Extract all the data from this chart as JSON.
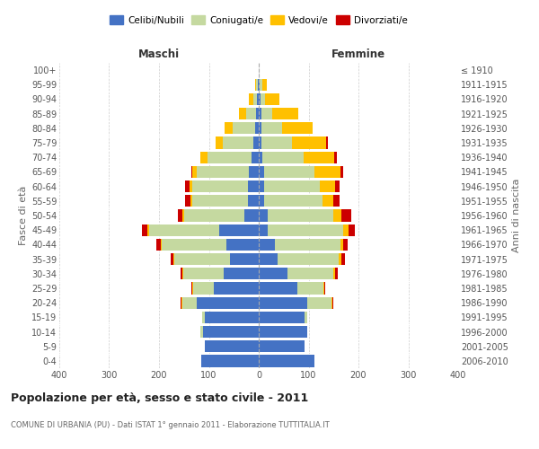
{
  "age_groups": [
    "0-4",
    "5-9",
    "10-14",
    "15-19",
    "20-24",
    "25-29",
    "30-34",
    "35-39",
    "40-44",
    "45-49",
    "50-54",
    "55-59",
    "60-64",
    "65-69",
    "70-74",
    "75-79",
    "80-84",
    "85-89",
    "90-94",
    "95-99",
    "100+"
  ],
  "birth_years": [
    "2006-2010",
    "2001-2005",
    "1996-2000",
    "1991-1995",
    "1986-1990",
    "1981-1985",
    "1976-1980",
    "1971-1975",
    "1966-1970",
    "1961-1965",
    "1956-1960",
    "1951-1955",
    "1946-1950",
    "1941-1945",
    "1936-1940",
    "1931-1935",
    "1926-1930",
    "1921-1925",
    "1916-1920",
    "1911-1915",
    "≤ 1910"
  ],
  "maschi": {
    "celibi": [
      115,
      108,
      112,
      108,
      125,
      90,
      70,
      58,
      65,
      80,
      28,
      22,
      22,
      20,
      15,
      10,
      8,
      5,
      3,
      2,
      0
    ],
    "coniugati": [
      0,
      0,
      5,
      5,
      28,
      42,
      82,
      112,
      130,
      140,
      122,
      112,
      112,
      105,
      88,
      62,
      45,
      20,
      8,
      3,
      0
    ],
    "vedovi": [
      0,
      0,
      0,
      0,
      2,
      2,
      2,
      2,
      2,
      3,
      3,
      3,
      5,
      8,
      14,
      14,
      15,
      15,
      8,
      2,
      0
    ],
    "divorziati": [
      0,
      0,
      0,
      0,
      2,
      2,
      3,
      5,
      8,
      12,
      10,
      10,
      8,
      3,
      0,
      0,
      0,
      0,
      0,
      0,
      0
    ]
  },
  "femmine": {
    "nubili": [
      112,
      92,
      98,
      92,
      98,
      78,
      58,
      38,
      32,
      18,
      18,
      10,
      10,
      10,
      8,
      5,
      5,
      5,
      3,
      2,
      0
    ],
    "coniugate": [
      0,
      0,
      0,
      5,
      48,
      52,
      92,
      122,
      132,
      152,
      132,
      118,
      112,
      102,
      82,
      62,
      42,
      22,
      10,
      5,
      0
    ],
    "vedove": [
      0,
      0,
      0,
      0,
      2,
      2,
      3,
      5,
      5,
      10,
      15,
      22,
      32,
      52,
      62,
      68,
      62,
      52,
      28,
      10,
      0
    ],
    "divorziate": [
      0,
      0,
      0,
      0,
      2,
      2,
      5,
      8,
      10,
      12,
      20,
      12,
      8,
      5,
      5,
      3,
      0,
      0,
      0,
      0,
      0
    ]
  },
  "colors": {
    "celibi": "#4472c4",
    "coniugati": "#c5d9a0",
    "vedovi": "#ffc000",
    "divorziati": "#cc0000"
  },
  "xlim": [
    -400,
    400
  ],
  "xticks": [
    -400,
    -300,
    -200,
    -100,
    0,
    100,
    200,
    300,
    400
  ],
  "xticklabels": [
    "400",
    "300",
    "200",
    "100",
    "0",
    "100",
    "200",
    "300",
    "400"
  ],
  "title": "Popolazione per età, sesso e stato civile - 2011",
  "subtitle": "COMUNE DI URBANIA (PU) - Dati ISTAT 1° gennaio 2011 - Elaborazione TUTTITALIA.IT",
  "ylabel_left": "Fasce di età",
  "ylabel_right": "Anni di nascita",
  "label_maschi": "Maschi",
  "label_femmine": "Femmine",
  "legend_celibi": "Celibi/Nubili",
  "legend_coniugati": "Coniugati/e",
  "legend_vedovi": "Vedovi/e",
  "legend_divorziati": "Divorziati/e",
  "bar_height": 0.82,
  "bg_color": "#ffffff",
  "grid_color": "#cccccc"
}
